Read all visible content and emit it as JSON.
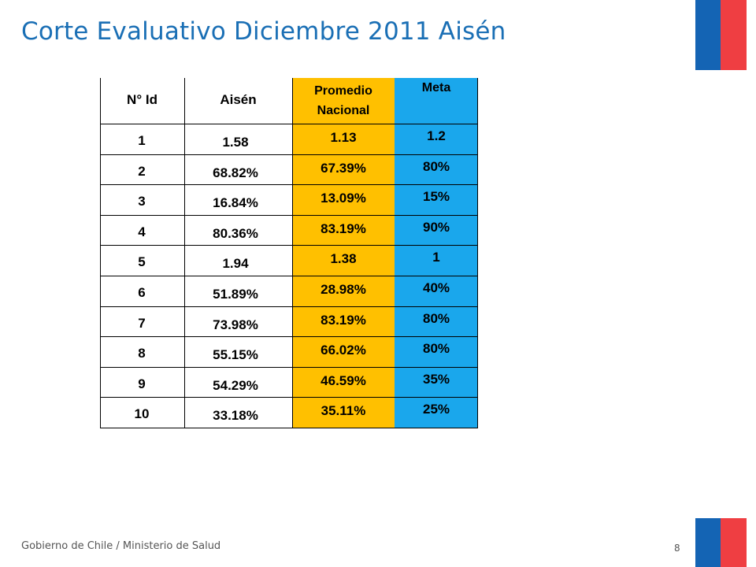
{
  "slide": {
    "title": "Corte Evaluativo Diciembre 2011 Aisén",
    "footer": "Gobierno de Chile / Ministerio de Salud",
    "page_number": "8"
  },
  "colors": {
    "title": "#1a6fb5",
    "promedio_column": "#ffc000",
    "meta_column": "#1aa7ec",
    "flag_blue": "#1464b4",
    "flag_red": "#ef3e42"
  },
  "table": {
    "headers": {
      "id": "N° Id",
      "aisen": "Aisén",
      "promedio_line1": "Promedio",
      "promedio_line2": "Nacional",
      "meta": "Meta"
    },
    "rows": [
      {
        "id": "1",
        "aisen": "1.58",
        "promedio": "1.13",
        "meta": "1.2"
      },
      {
        "id": "2",
        "aisen": "68.82%",
        "promedio": "67.39%",
        "meta": "80%"
      },
      {
        "id": "3",
        "aisen": "16.84%",
        "promedio": "13.09%",
        "meta": "15%"
      },
      {
        "id": "4",
        "aisen": "80.36%",
        "promedio": "83.19%",
        "meta": "90%"
      },
      {
        "id": "5",
        "aisen": "1.94",
        "promedio": "1.38",
        "meta": "1"
      },
      {
        "id": "6",
        "aisen": "51.89%",
        "promedio": "28.98%",
        "meta": "40%"
      },
      {
        "id": "7",
        "aisen": "73.98%",
        "promedio": "83.19%",
        "meta": "80%"
      },
      {
        "id": "8",
        "aisen": "55.15%",
        "promedio": "66.02%",
        "meta": "80%"
      },
      {
        "id": "9",
        "aisen": "54.29%",
        "promedio": "46.59%",
        "meta": "35%"
      },
      {
        "id": "10",
        "aisen": "33.18%",
        "promedio": "35.11%",
        "meta": "25%"
      }
    ]
  }
}
